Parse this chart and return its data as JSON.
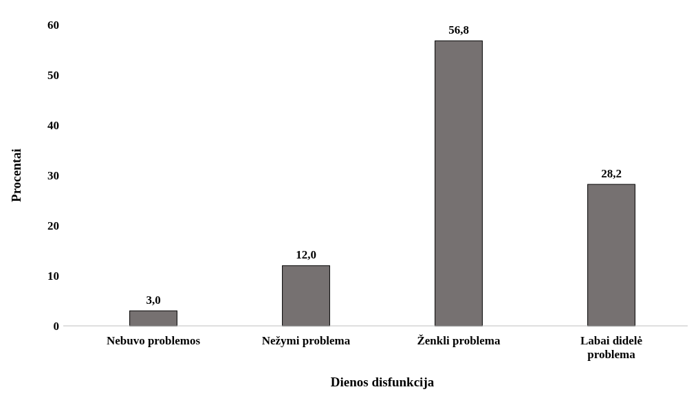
{
  "chart_data": {
    "type": "bar",
    "xlabel": "Dienos disfunkcija",
    "ylabel": "Procentai",
    "categories": [
      "Nebuvo problemos",
      "Nežymi problema",
      "Ženkli problema",
      "Labai didelė problema"
    ],
    "values": [
      3.0,
      12.0,
      56.8,
      28.2
    ],
    "value_labels": [
      "3,0",
      "12,0",
      "56,8",
      "28,2"
    ],
    "color": "#767171",
    "ylim": [
      0,
      60
    ],
    "yticks": [
      0,
      10,
      20,
      30,
      40,
      50,
      60
    ],
    "grid": false
  }
}
